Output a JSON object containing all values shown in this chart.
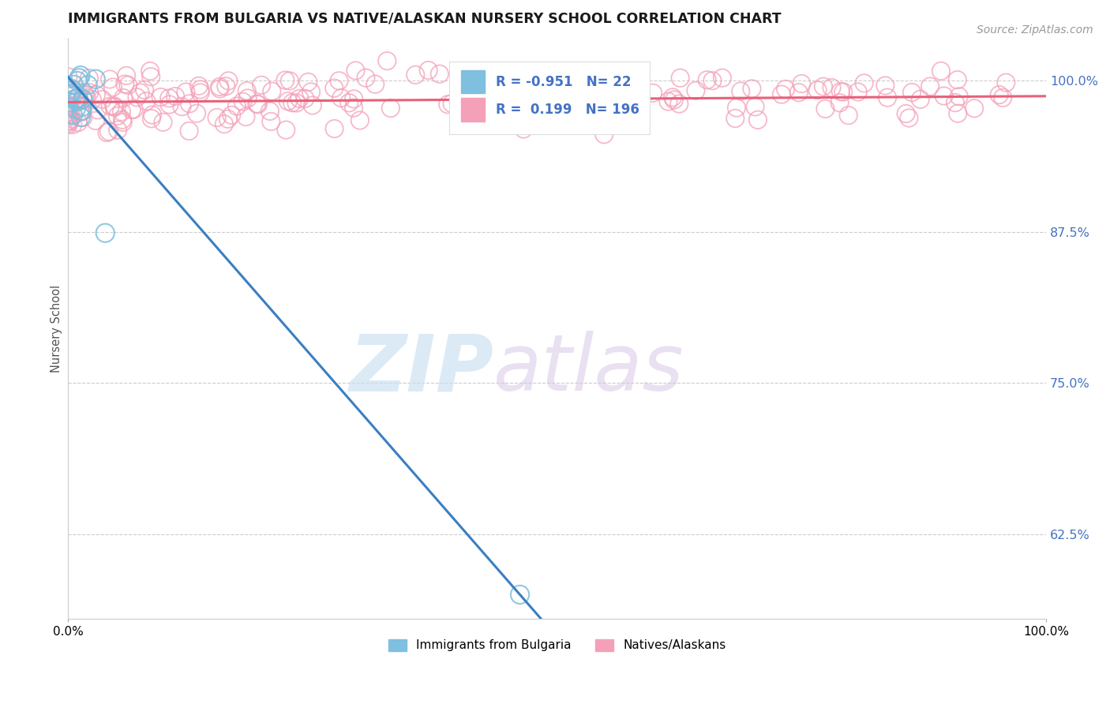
{
  "title": "IMMIGRANTS FROM BULGARIA VS NATIVE/ALASKAN NURSERY SCHOOL CORRELATION CHART",
  "source_text": "Source: ZipAtlas.com",
  "ylabel": "Nursery School",
  "xmin": 0.0,
  "xmax": 1.0,
  "ymin": 0.555,
  "ymax": 1.035,
  "blue_R": -0.951,
  "blue_N": 22,
  "pink_R": 0.199,
  "pink_N": 196,
  "blue_color": "#7fbfdf",
  "pink_color": "#f4a0b8",
  "blue_line_color": "#3a7fc1",
  "pink_line_color": "#e8607a",
  "legend_labels": [
    "Immigrants from Bulgaria",
    "Natives/Alaskans"
  ],
  "y_ticks": [
    0.625,
    0.75,
    0.875,
    1.0
  ],
  "y_tick_labels": [
    "62.5%",
    "75.0%",
    "87.5%",
    "100.0%"
  ],
  "x_tick_labels": [
    "0.0%",
    "100.0%"
  ],
  "background_color": "#ffffff",
  "watermark_zip": "ZIP",
  "watermark_atlas": "atlas",
  "legend_text_color": "#4472c4",
  "title_color": "#1a1a1a",
  "source_color": "#999999",
  "ytick_color": "#4472c4"
}
